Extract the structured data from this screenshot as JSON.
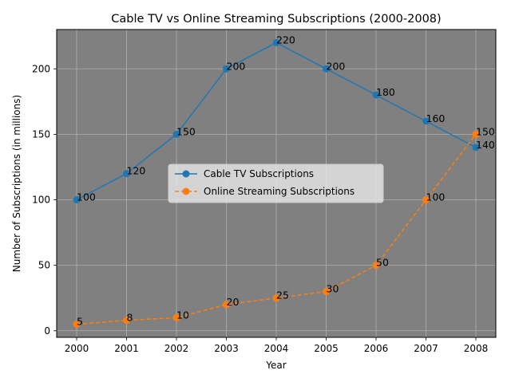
{
  "chart_data": {
    "type": "line",
    "title": "Cable TV vs Online Streaming Subscriptions (2000-2008)",
    "xlabel": "Year",
    "ylabel": "Number of Subscriptions (in millions)",
    "categories": [
      "2000",
      "2001",
      "2002",
      "2003",
      "2004",
      "2005",
      "2006",
      "2007",
      "2008"
    ],
    "ylim": [
      -5,
      230
    ],
    "yticks": [
      0,
      50,
      100,
      150,
      200
    ],
    "grid": true,
    "plot_background": "#808080",
    "legend_position": "center-right",
    "series": [
      {
        "name": "Cable TV Subscriptions",
        "values": [
          100,
          120,
          150,
          200,
          220,
          200,
          180,
          160,
          140
        ],
        "labels": [
          "100",
          "120",
          "150",
          "200",
          "220",
          "200",
          "180",
          "160",
          "140"
        ],
        "color": "#1f77b4",
        "linestyle": "solid",
        "marker": "circle"
      },
      {
        "name": "Online Streaming Subscriptions",
        "values": [
          5,
          8,
          10,
          20,
          25,
          30,
          50,
          100,
          150
        ],
        "labels": [
          "5",
          "8",
          "10",
          "20",
          "25",
          "30",
          "50",
          "100",
          "150"
        ],
        "color": "#ff7f0e",
        "linestyle": "dashed",
        "marker": "circle"
      }
    ]
  }
}
